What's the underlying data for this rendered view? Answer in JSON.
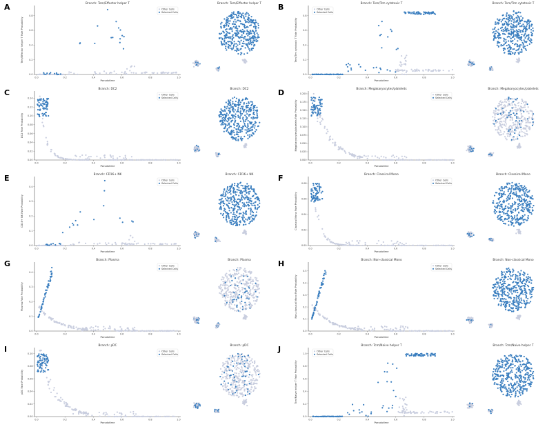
{
  "figure": {
    "xlabel": "Pseudotime",
    "legend_other": "Other Cells",
    "legend_selected": "Selected Cells"
  },
  "colors": {
    "other": "#c9cedf",
    "selected": "#3a7ebf",
    "axis": "#555555"
  },
  "chart_data": [
    {
      "letter": "A",
      "type": "scatter",
      "title": "Branch: Tem/Effector helper T",
      "ylabel": "Tem/Effector helper T Fate Probability",
      "xlabel": "Pseudotime",
      "xlim": [
        0,
        1.0
      ],
      "ylim": [
        0,
        0.9
      ],
      "xticks": [
        "0.0",
        "0.2",
        "0.4",
        "0.6",
        "0.8",
        "1.0"
      ],
      "yticks": [
        "0.0",
        "0.2",
        "0.4",
        "0.6",
        "0.8"
      ],
      "ytick_vals": [
        0,
        0.2,
        0.4,
        0.6,
        0.8
      ],
      "legend_pos": "top-right",
      "umap_title": "Branch: Tem/Effector helper T",
      "shape": "spike",
      "peak_x": 0.5,
      "peak_y": 0.9,
      "umap_variant": "big"
    },
    {
      "letter": "B",
      "type": "scatter",
      "title": "Branch: Tem/Trm cytotoxic T",
      "ylabel": "Tem/Trm cytotoxic T Fate Probability",
      "xlabel": "Pseudotime",
      "xlim": [
        0,
        1.0
      ],
      "ylim": [
        0,
        0.9
      ],
      "xticks": [
        "0.0",
        "0.2",
        "0.4",
        "0.6",
        "0.8",
        "1.0"
      ],
      "yticks": [
        "0.0",
        "0.2",
        "0.4",
        "0.6",
        "0.8"
      ],
      "ytick_vals": [
        0,
        0.2,
        0.4,
        0.6,
        0.8
      ],
      "legend_pos": "top-left",
      "umap_title": "Branch: Tem/Trm cytotoxic T",
      "shape": "rise",
      "plateau": 0.85,
      "umap_variant": "big"
    },
    {
      "letter": "C",
      "type": "scatter",
      "title": "Branch: DC2",
      "ylabel": "DC2 Fate Probability",
      "xlabel": "Pseudotime",
      "xlim": [
        0,
        1.0
      ],
      "ylim": [
        0,
        0.15
      ],
      "xticks": [
        "0.0",
        "0.2",
        "0.4",
        "0.6",
        "0.8",
        "1.0"
      ],
      "yticks": [
        "0.00",
        "0.02",
        "0.04",
        "0.06",
        "0.08",
        "0.10",
        "0.12",
        "0.14"
      ],
      "ytick_vals": [
        0,
        0.02,
        0.04,
        0.06,
        0.08,
        0.1,
        0.12,
        0.14
      ],
      "legend_pos": "top-right",
      "umap_title": "Branch: DC2",
      "shape": "decay",
      "peak_y": 0.14,
      "umap_variant": "big"
    },
    {
      "letter": "D",
      "type": "scatter",
      "title": "Branch: Megakaryocytes/platelets",
      "ylabel": "Megakaryocytes/platelets Fate Probability",
      "xlabel": "Pseudotime",
      "xlim": [
        0,
        1.0
      ],
      "ylim": [
        0,
        0.2
      ],
      "xticks": [
        "0.0",
        "0.2",
        "0.4",
        "0.6",
        "0.8",
        "1.0"
      ],
      "yticks": [
        "0.000",
        "0.025",
        "0.050",
        "0.075",
        "0.100",
        "0.125",
        "0.150",
        "0.175",
        "0.200"
      ],
      "ytick_vals": [
        0,
        0.025,
        0.05,
        0.075,
        0.1,
        0.125,
        0.15,
        0.175,
        0.2
      ],
      "legend_pos": "top-right",
      "umap_title": "Branch: Megakaryocytes/platelets",
      "shape": "decay_slow",
      "peak_y": 0.19,
      "umap_variant": "grey"
    },
    {
      "letter": "E",
      "type": "scatter",
      "title": "Branch: CD16+ NK",
      "ylabel": "CD16+ NK Fate Probability",
      "xlabel": "Pseudotime",
      "xlim": [
        0,
        1.0
      ],
      "ylim": [
        0,
        0.45
      ],
      "xticks": [
        "0.0",
        "0.2",
        "0.4",
        "0.6",
        "0.8",
        "1.0"
      ],
      "yticks": [
        "0.0",
        "0.1",
        "0.2",
        "0.3",
        "0.4"
      ],
      "ytick_vals": [
        0,
        0.1,
        0.2,
        0.3,
        0.4
      ],
      "legend_pos": "top-right",
      "umap_title": "Branch: CD16+ NK",
      "shape": "spike",
      "peak_x": 0.48,
      "peak_y": 0.45,
      "umap_variant": "big"
    },
    {
      "letter": "F",
      "type": "scatter",
      "title": "Branch: Classical Mono",
      "ylabel": "Classical Mono Fate Probability",
      "xlabel": "Pseudotime",
      "xlim": [
        0,
        1.0
      ],
      "ylim": [
        0,
        0.085
      ],
      "xticks": [
        "0.0",
        "0.2",
        "0.4",
        "0.6",
        "0.8",
        "1.0"
      ],
      "yticks": [
        "0.00",
        "0.02",
        "0.04",
        "0.06",
        "0.08"
      ],
      "ytick_vals": [
        0,
        0.02,
        0.04,
        0.06,
        0.08
      ],
      "legend_pos": "top-right",
      "umap_title": "Branch: Classical Mono",
      "shape": "decay",
      "peak_y": 0.08,
      "umap_variant": "big"
    },
    {
      "letter": "G",
      "type": "scatter",
      "title": "Branch: Plasma",
      "ylabel": "Plasma Fate Probability",
      "xlabel": "Pseudotime",
      "xlim": [
        0,
        1.0
      ],
      "ylim": [
        0,
        0.45
      ],
      "xticks": [
        "0.0",
        "0.2",
        "0.4",
        "0.6",
        "0.8",
        "1.0"
      ],
      "yticks": [
        "0.0",
        "0.1",
        "0.2",
        "0.3",
        "0.4"
      ],
      "ytick_vals": [
        0,
        0.1,
        0.2,
        0.3,
        0.4
      ],
      "legend_pos": "top-right",
      "umap_title": "Branch: Plasma",
      "shape": "hump",
      "peak_y": 0.42,
      "umap_variant": "grey"
    },
    {
      "letter": "H",
      "type": "scatter",
      "title": "Branch: Non-classical Mono",
      "ylabel": "Non-classical Mono Fate Probability",
      "xlabel": "Pseudotime",
      "xlim": [
        0,
        1.0
      ],
      "ylim": [
        0,
        0.55
      ],
      "xticks": [
        "0.0",
        "0.2",
        "0.4",
        "0.6",
        "0.8",
        "1.0"
      ],
      "yticks": [
        "0.0",
        "0.1",
        "0.2",
        "0.3",
        "0.4",
        "0.5"
      ],
      "ytick_vals": [
        0,
        0.1,
        0.2,
        0.3,
        0.4,
        0.5
      ],
      "legend_pos": "top-right",
      "umap_title": "Branch: Non-classical Mono",
      "shape": "hump",
      "peak_y": 0.52,
      "umap_variant": "big"
    },
    {
      "letter": "I",
      "type": "scatter",
      "title": "Branch: pDC",
      "ylabel": "pDC Fate Probability",
      "xlabel": "Pseudotime",
      "xlim": [
        0,
        1.0
      ],
      "ylim": [
        0,
        0.105
      ],
      "xticks": [
        "0.0",
        "0.2",
        "0.4",
        "0.6",
        "0.8",
        "1.0"
      ],
      "yticks": [
        "0.00",
        "0.02",
        "0.04",
        "0.06",
        "0.08",
        "0.10"
      ],
      "ytick_vals": [
        0,
        0.02,
        0.04,
        0.06,
        0.08,
        0.1
      ],
      "legend_pos": "top-right",
      "umap_title": "Branch: pDC",
      "shape": "decay_slow",
      "peak_y": 0.1,
      "umap_variant": "grey"
    },
    {
      "letter": "J",
      "type": "scatter",
      "title": "Branch: Tcm/Naive helper T",
      "ylabel": "Tcm/Naive helper T Fate Probability",
      "xlabel": "Pseudotime",
      "xlim": [
        0,
        1.0
      ],
      "ylim": [
        0,
        1.05
      ],
      "xticks": [
        "0.0",
        "0.2",
        "0.4",
        "0.6",
        "0.8",
        "1.0"
      ],
      "yticks": [
        "0.0",
        "0.2",
        "0.4",
        "0.6",
        "0.8",
        "1.0"
      ],
      "ytick_vals": [
        0,
        0.2,
        0.4,
        0.6,
        0.8,
        1.0
      ],
      "legend_pos": "top-left",
      "umap_title": "Branch: Tcm/Naive helper T",
      "shape": "rise",
      "plateau": 1.0,
      "umap_variant": "big"
    }
  ]
}
